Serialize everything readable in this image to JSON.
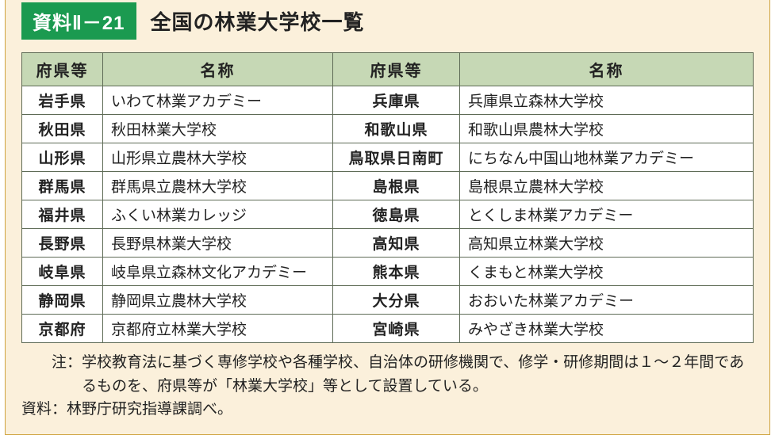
{
  "colors": {
    "page_bg": "#fbf0db",
    "outer_border": "#cfa33f",
    "badge_bg": "#1b9a50",
    "badge_fg": "#ffffff",
    "title_fg": "#222222",
    "th_bg": "#c6d8b5",
    "th_fg": "#222222",
    "table_bg": "#ffffff",
    "cell_border": "#5e6b56",
    "td_fg": "#222222",
    "note_fg": "#222222"
  },
  "badge": "資料Ⅱ－21",
  "title": "全国の林業大学校一覧",
  "headers": {
    "pref": "府県等",
    "name": "名称"
  },
  "rows": [
    {
      "pref1": "岩手県",
      "name1": "いわて林業アカデミー",
      "pref2": "兵庫県",
      "name2": "兵庫県立森林大学校"
    },
    {
      "pref1": "秋田県",
      "name1": "秋田林業大学校",
      "pref2": "和歌山県",
      "name2": "和歌山県農林大学校"
    },
    {
      "pref1": "山形県",
      "name1": "山形県立農林大学校",
      "pref2": "鳥取県日南町",
      "name2": "にちなん中国山地林業アカデミー"
    },
    {
      "pref1": "群馬県",
      "name1": "群馬県立農林大学校",
      "pref2": "島根県",
      "name2": "島根県立農林大学校"
    },
    {
      "pref1": "福井県",
      "name1": "ふくい林業カレッジ",
      "pref2": "徳島県",
      "name2": "とくしま林業アカデミー"
    },
    {
      "pref1": "長野県",
      "name1": "長野県林業大学校",
      "pref2": "高知県",
      "name2": "高知県立林業大学校"
    },
    {
      "pref1": "岐阜県",
      "name1": "岐阜県立森林文化アカデミー",
      "pref2": "熊本県",
      "name2": "くまもと林業大学校"
    },
    {
      "pref1": "静岡県",
      "name1": "静岡県立農林大学校",
      "pref2": "大分県",
      "name2": "おおいた林業アカデミー"
    },
    {
      "pref1": "京都府",
      "name1": "京都府立林業大学校",
      "pref2": "宮崎県",
      "name2": "みやざき林業大学校"
    }
  ],
  "note_label": "　　注：",
  "note_text": "学校教育法に基づく専修学校や各種学校、自治体の研修機関で、修学・研修期間は１～２年間であるものを、府県等が「林業大学校」等として設置している。",
  "source_label": "資料：",
  "source_text": "林野庁研究指導課調べ。"
}
